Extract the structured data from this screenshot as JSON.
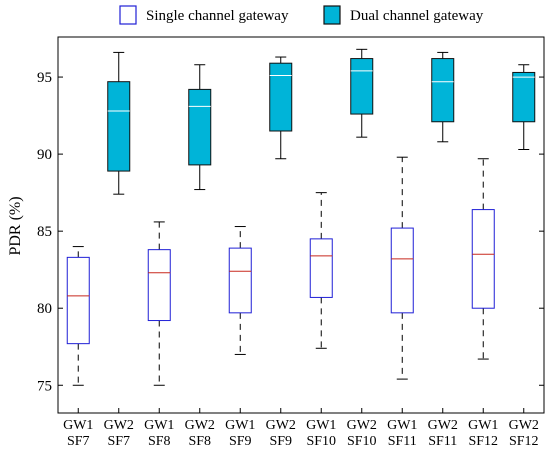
{
  "chart_data": {
    "type": "box",
    "title": "",
    "xlabel": "",
    "ylabel": "PDR (%)",
    "ylim": [
      73.2,
      97.6
    ],
    "yticks": [
      75,
      80,
      85,
      90,
      95
    ],
    "grid": false,
    "legend_position": "top",
    "categories": [
      [
        "GW1",
        "SF7"
      ],
      [
        "GW2",
        "SF7"
      ],
      [
        "GW1",
        "SF8"
      ],
      [
        "GW2",
        "SF8"
      ],
      [
        "GW1",
        "SF9"
      ],
      [
        "GW2",
        "SF9"
      ],
      [
        "GW1",
        "SF10"
      ],
      [
        "GW2",
        "SF10"
      ],
      [
        "GW1",
        "SF11"
      ],
      [
        "GW2",
        "SF11"
      ],
      [
        "GW1",
        "SF12"
      ],
      [
        "GW2",
        "SF12"
      ]
    ],
    "series": [
      {
        "name": "Single channel gateway",
        "style": "outline",
        "edge_color": "#1f1fd6",
        "median_color": "#c8281e",
        "fill": "#ffffff",
        "positions": [
          0,
          2,
          4,
          6,
          8,
          10
        ],
        "boxes": [
          {
            "min": 75.0,
            "q1": 77.7,
            "median": 80.8,
            "q3": 83.3,
            "max": 84.0
          },
          {
            "min": 75.0,
            "q1": 79.2,
            "median": 82.3,
            "q3": 83.8,
            "max": 85.6
          },
          {
            "min": 77.0,
            "q1": 79.7,
            "median": 82.4,
            "q3": 83.9,
            "max": 85.3
          },
          {
            "min": 77.4,
            "q1": 80.7,
            "median": 83.4,
            "q3": 84.5,
            "max": 87.5
          },
          {
            "min": 75.4,
            "q1": 79.7,
            "median": 83.2,
            "q3": 85.2,
            "max": 89.8
          },
          {
            "min": 76.7,
            "q1": 80.0,
            "median": 83.5,
            "q3": 86.4,
            "max": 89.7
          }
        ]
      },
      {
        "name": "Dual channel gateway",
        "style": "filled",
        "edge_color": "#111111",
        "median_color": "#ffffff",
        "fill": "#00b4d8",
        "positions": [
          1,
          3,
          5,
          7,
          9,
          11
        ],
        "boxes": [
          {
            "min": 87.4,
            "q1": 88.9,
            "median": 92.8,
            "q3": 94.7,
            "max": 96.6
          },
          {
            "min": 87.7,
            "q1": 89.3,
            "median": 93.1,
            "q3": 94.2,
            "max": 95.8
          },
          {
            "min": 89.7,
            "q1": 91.5,
            "median": 95.1,
            "q3": 95.9,
            "max": 96.3
          },
          {
            "min": 91.1,
            "q1": 92.6,
            "median": 95.4,
            "q3": 96.2,
            "max": 96.8
          },
          {
            "min": 90.8,
            "q1": 92.1,
            "median": 94.7,
            "q3": 96.2,
            "max": 96.6
          },
          {
            "min": 90.3,
            "q1": 92.1,
            "median": 95.0,
            "q3": 95.3,
            "max": 95.8
          }
        ]
      }
    ]
  }
}
